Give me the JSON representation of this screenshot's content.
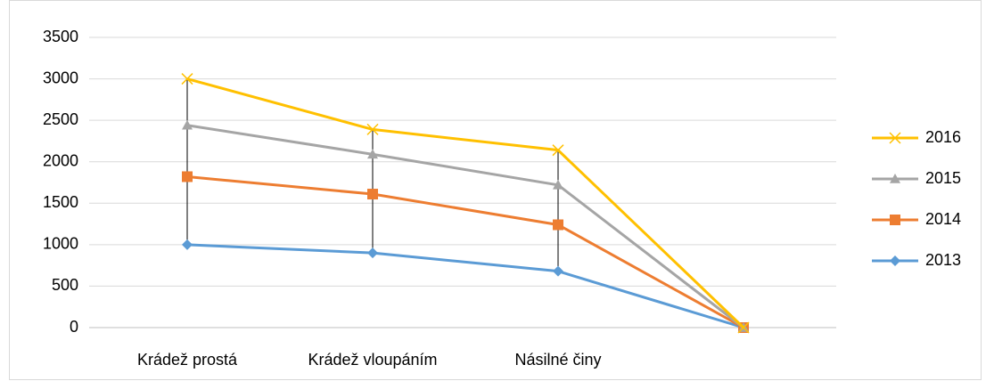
{
  "chart_data": {
    "type": "line",
    "categories": [
      "Krádež prostá",
      "Krádež vloupáním",
      "Násilné činy",
      null
    ],
    "series": [
      {
        "name": "2016",
        "color": "#ffc000",
        "marker": "x",
        "values": [
          3000,
          2390,
          2140,
          0
        ]
      },
      {
        "name": "2015",
        "color": "#a5a5a5",
        "marker": "triangle",
        "values": [
          2440,
          2090,
          1720,
          0
        ]
      },
      {
        "name": "2014",
        "color": "#ed7d31",
        "marker": "square",
        "values": [
          1820,
          1610,
          1240,
          0
        ]
      },
      {
        "name": "2013",
        "color": "#5b9bd5",
        "marker": "diamond",
        "values": [
          1000,
          900,
          680,
          0
        ]
      }
    ],
    "ylim": [
      0,
      3500
    ],
    "yticks": [
      0,
      500,
      1000,
      1500,
      2000,
      2500,
      3000,
      3500
    ],
    "grid": true,
    "legend": "right",
    "drop_lines": true
  }
}
